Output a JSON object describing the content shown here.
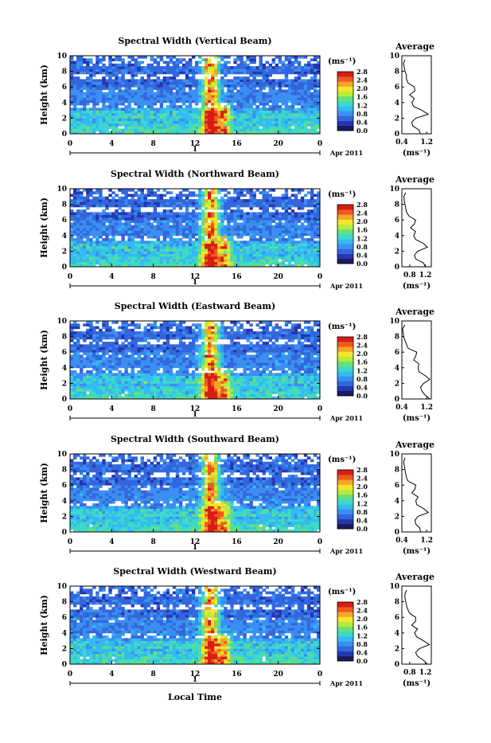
{
  "chart_data": {
    "type": "heatmap",
    "panels": [
      {
        "title": "Spectral Width (Vertical Beam)",
        "avg_title": "Average",
        "avg_xticks": [
          "0.4",
          "1.2"
        ],
        "avg_xlim": [
          0.4,
          1.35
        ],
        "avg_profile": [
          [
            0.0,
            1.0
          ],
          [
            0.5,
            0.95
          ],
          [
            1.0,
            0.75
          ],
          [
            1.5,
            0.72
          ],
          [
            2.0,
            0.85
          ],
          [
            2.5,
            1.25
          ],
          [
            3.0,
            1.05
          ],
          [
            3.5,
            0.78
          ],
          [
            4.0,
            0.72
          ],
          [
            4.5,
            0.8
          ],
          [
            5.0,
            0.65
          ],
          [
            5.5,
            0.82
          ],
          [
            6.0,
            0.8
          ],
          [
            6.5,
            0.6
          ],
          [
            7.0,
            0.55
          ],
          [
            7.5,
            0.55
          ],
          [
            8.0,
            0.5
          ],
          [
            8.5,
            0.48
          ],
          [
            9.0,
            0.45
          ],
          [
            9.5,
            0.5
          ]
        ]
      },
      {
        "title": "Spectral Width (Northward Beam)",
        "avg_title": "Average",
        "avg_xticks": [
          "0.8",
          "1.2"
        ],
        "avg_xlim": [
          0.6,
          1.35
        ],
        "avg_profile": [
          [
            0.0,
            1.2
          ],
          [
            0.5,
            1.15
          ],
          [
            1.0,
            0.95
          ],
          [
            1.5,
            0.92
          ],
          [
            2.0,
            1.0
          ],
          [
            2.5,
            1.25
          ],
          [
            3.0,
            1.15
          ],
          [
            3.5,
            0.95
          ],
          [
            4.0,
            0.9
          ],
          [
            4.5,
            0.95
          ],
          [
            5.0,
            0.82
          ],
          [
            5.5,
            0.92
          ],
          [
            6.0,
            0.95
          ],
          [
            6.5,
            0.78
          ],
          [
            7.0,
            0.72
          ],
          [
            7.5,
            0.7
          ],
          [
            8.0,
            0.68
          ],
          [
            8.5,
            0.66
          ],
          [
            9.0,
            0.65
          ],
          [
            9.5,
            0.7
          ]
        ]
      },
      {
        "title": "Spectral Width (Eastward Beam)",
        "avg_title": "Average",
        "avg_xticks": [
          "0.4",
          "1.2"
        ],
        "avg_xlim": [
          0.4,
          1.35
        ],
        "avg_profile": [
          [
            0.0,
            1.3
          ],
          [
            0.5,
            1.15
          ],
          [
            1.0,
            1.05
          ],
          [
            1.5,
            1.0
          ],
          [
            2.0,
            1.1
          ],
          [
            2.5,
            1.3
          ],
          [
            3.0,
            1.15
          ],
          [
            3.5,
            0.95
          ],
          [
            4.0,
            0.92
          ],
          [
            4.5,
            0.95
          ],
          [
            5.0,
            0.78
          ],
          [
            5.5,
            0.85
          ],
          [
            6.0,
            0.88
          ],
          [
            6.5,
            0.6
          ],
          [
            7.0,
            0.55
          ],
          [
            7.5,
            0.5
          ],
          [
            8.0,
            0.46
          ],
          [
            8.5,
            0.44
          ],
          [
            9.0,
            0.42
          ],
          [
            9.5,
            0.5
          ]
        ]
      },
      {
        "title": "Spectral Width (Southward Beam)",
        "avg_title": "Average",
        "avg_xticks": [
          "0.4",
          "1.2"
        ],
        "avg_xlim": [
          0.4,
          1.35
        ],
        "avg_profile": [
          [
            0.0,
            1.0
          ],
          [
            0.5,
            0.98
          ],
          [
            1.0,
            0.85
          ],
          [
            1.5,
            0.82
          ],
          [
            2.0,
            0.92
          ],
          [
            2.5,
            1.25
          ],
          [
            3.0,
            1.1
          ],
          [
            3.5,
            0.88
          ],
          [
            4.0,
            0.85
          ],
          [
            4.5,
            0.92
          ],
          [
            5.0,
            0.72
          ],
          [
            5.5,
            0.82
          ],
          [
            6.0,
            0.85
          ],
          [
            6.5,
            0.6
          ],
          [
            7.0,
            0.55
          ],
          [
            7.5,
            0.52
          ],
          [
            8.0,
            0.5
          ],
          [
            8.5,
            0.48
          ],
          [
            9.0,
            0.46
          ],
          [
            9.5,
            0.5
          ]
        ]
      },
      {
        "title": "Spectral Width (Westward Beam)",
        "avg_title": "Average",
        "avg_xticks": [
          "0.8",
          "1.2"
        ],
        "avg_xlim": [
          0.6,
          1.35
        ],
        "avg_profile": [
          [
            0.0,
            1.25
          ],
          [
            0.5,
            1.15
          ],
          [
            1.0,
            1.0
          ],
          [
            1.5,
            0.95
          ],
          [
            2.0,
            1.05
          ],
          [
            2.5,
            1.3
          ],
          [
            3.0,
            1.15
          ],
          [
            3.5,
            0.98
          ],
          [
            4.0,
            0.92
          ],
          [
            4.5,
            1.0
          ],
          [
            5.0,
            0.85
          ],
          [
            5.5,
            0.95
          ],
          [
            6.0,
            0.95
          ],
          [
            6.5,
            0.8
          ],
          [
            7.0,
            0.75
          ],
          [
            7.5,
            0.72
          ],
          [
            8.0,
            0.7
          ],
          [
            8.5,
            0.68
          ],
          [
            9.0,
            0.68
          ],
          [
            9.5,
            0.72
          ]
        ]
      }
    ],
    "ylabel": "Height (km)",
    "xlabel": "Local Time",
    "yticks": [
      "0",
      "2",
      "4",
      "6",
      "8",
      "10"
    ],
    "ylim": [
      0,
      10
    ],
    "xticks": [
      "0",
      "4",
      "8",
      "12",
      "16",
      "20",
      "0"
    ],
    "xlim": [
      0,
      24
    ],
    "day_label": "1",
    "date_label": "Apr 2011",
    "colorbar": {
      "unit": "(ms⁻¹)",
      "ticks": [
        "0.0",
        "0.4",
        "0.8",
        "1.2",
        "1.6",
        "2.0",
        "2.4",
        "2.8"
      ],
      "range": [
        0.0,
        2.8
      ],
      "colors": [
        "#1a1a5e",
        "#2437b0",
        "#3366dd",
        "#3b8ff0",
        "#33bbf2",
        "#3ed9c8",
        "#66e07a",
        "#b8ea3c",
        "#f4e62a",
        "#f5a52a",
        "#ef5a1f",
        "#d81c14"
      ]
    },
    "avg_unit": "(ms⁻¹)"
  }
}
